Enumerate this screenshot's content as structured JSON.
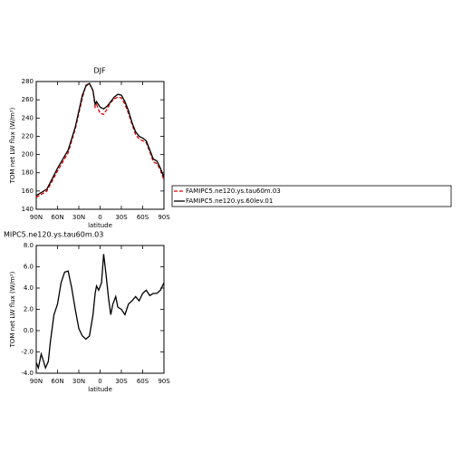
{
  "chart_data": [
    {
      "type": "line",
      "title": "DJF",
      "xlabel": "latitude",
      "ylabel": "TOM net LW flux (W/m²)",
      "x": [
        90,
        75,
        60,
        45,
        35,
        25,
        20,
        15,
        10,
        7,
        5,
        0,
        -5,
        -10,
        -15,
        -20,
        -25,
        -30,
        -35,
        -40,
        -45,
        -50,
        -55,
        -60,
        -65,
        -70,
        -75,
        -80,
        -85,
        -90
      ],
      "series": [
        {
          "name": "FAMIPC5.ne120.ys.tau60m.03",
          "color": "#e00000",
          "dashed": true,
          "values": [
            153,
            160,
            182,
            202,
            228,
            262,
            276,
            278,
            270,
            252,
            255,
            245,
            244,
            250,
            257,
            261,
            263,
            262,
            255,
            245,
            233,
            222,
            217,
            215,
            213,
            203,
            192,
            190,
            183,
            172
          ]
        },
        {
          "name": "FAMIPC5.ne120.ys.60lev.01",
          "color": "#000000",
          "dashed": false,
          "values": [
            155,
            162,
            185,
            205,
            230,
            265,
            275,
            278,
            270,
            255,
            258,
            252,
            250,
            253,
            258,
            263,
            266,
            265,
            258,
            248,
            235,
            225,
            220,
            218,
            215,
            205,
            195,
            193,
            185,
            175
          ]
        }
      ],
      "xlim": [
        90,
        -90
      ],
      "xticks": [
        {
          "value": 90,
          "label": "90N"
        },
        {
          "value": 60,
          "label": "60N"
        },
        {
          "value": 30,
          "label": "30N"
        },
        0,
        {
          "value": -30,
          "label": "30S"
        },
        {
          "value": -60,
          "label": "60S"
        },
        {
          "value": -90,
          "label": "90S"
        }
      ],
      "ylim": [
        140,
        280
      ],
      "yticks": [
        140,
        160,
        180,
        200,
        220,
        240,
        260,
        280
      ],
      "legend": "right"
    },
    {
      "type": "line",
      "title": "MIPC5.ne120.ys.tau60m.03",
      "xlabel": "latitude",
      "ylabel": "TOM net LW flux (W/m²)",
      "x": [
        90,
        87,
        83,
        80,
        77,
        73,
        70,
        65,
        60,
        55,
        50,
        45,
        40,
        35,
        30,
        25,
        20,
        15,
        10,
        7,
        5,
        2,
        -2,
        -5,
        -8,
        -12,
        -15,
        -18,
        -22,
        -25,
        -30,
        -35,
        -40,
        -45,
        -50,
        -55,
        -60,
        -65,
        -70,
        -75,
        -80,
        -85,
        -90
      ],
      "series": [
        {
          "color": "#000000",
          "dashed": false,
          "values": [
            -3.0,
            -3.5,
            -2.2,
            -2.8,
            -3.5,
            -2.9,
            -1.0,
            1.5,
            2.5,
            4.5,
            5.5,
            5.6,
            4.0,
            2.0,
            0.2,
            -0.5,
            -0.8,
            -0.5,
            1.5,
            3.5,
            4.2,
            3.8,
            4.5,
            7.2,
            5.5,
            3.0,
            1.5,
            2.5,
            3.2,
            2.2,
            2.0,
            1.5,
            2.5,
            2.8,
            3.2,
            2.8,
            3.5,
            3.8,
            3.3,
            3.5,
            3.5,
            3.8,
            4.5
          ]
        }
      ],
      "xlim": [
        90,
        -90
      ],
      "xticks": [
        {
          "value": 90,
          "label": "90N"
        },
        {
          "value": 60,
          "label": "60N"
        },
        {
          "value": 30,
          "label": "30N"
        },
        0,
        {
          "value": -30,
          "label": "30S"
        },
        {
          "value": -60,
          "label": "60S"
        },
        {
          "value": -90,
          "label": "90S"
        }
      ],
      "ylim": [
        -4,
        8
      ],
      "yticks": [
        {
          "value": -4,
          "label": "-4.0"
        },
        {
          "value": -2,
          "label": "-2.0"
        },
        {
          "value": 0,
          "label": "0.0"
        },
        {
          "value": 2,
          "label": "2.0"
        },
        {
          "value": 4,
          "label": "4.0"
        },
        {
          "value": 6,
          "label": "6.0"
        },
        {
          "value": 8,
          "label": "8.0"
        }
      ]
    }
  ]
}
